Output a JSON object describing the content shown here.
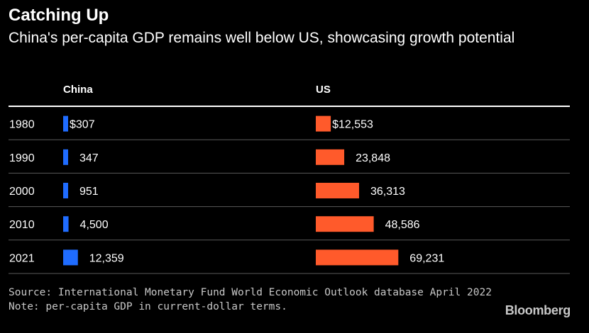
{
  "title": "Catching Up",
  "subtitle": "China's per-capita GDP remains well below US, showcasing growth potential",
  "source": "Source: International Monetary Fund World Economic Outlook database April 2022",
  "note": "Note: per-capita GDP in current-dollar terms.",
  "brand": "Bloomberg",
  "colors": {
    "china": "#1f6cff",
    "us": "#ff5a2b",
    "background": "#000000",
    "divider": "#5a5a5a",
    "header_rule": "#ffffff"
  },
  "chart_data": {
    "type": "bar",
    "orientation": "horizontal",
    "categories": [
      "1980",
      "1990",
      "2000",
      "2010",
      "2021"
    ],
    "series": [
      {
        "name": "China",
        "values": [
          307,
          347,
          951,
          4500,
          12359
        ],
        "labels": [
          "$307",
          "347",
          "951",
          "4,500",
          "12,359"
        ]
      },
      {
        "name": "US",
        "values": [
          12553,
          23848,
          36313,
          48586,
          69231
        ],
        "labels": [
          "$12,553",
          "23,848",
          "36,313",
          "48,586",
          "69,231"
        ]
      }
    ],
    "grid": false
  }
}
